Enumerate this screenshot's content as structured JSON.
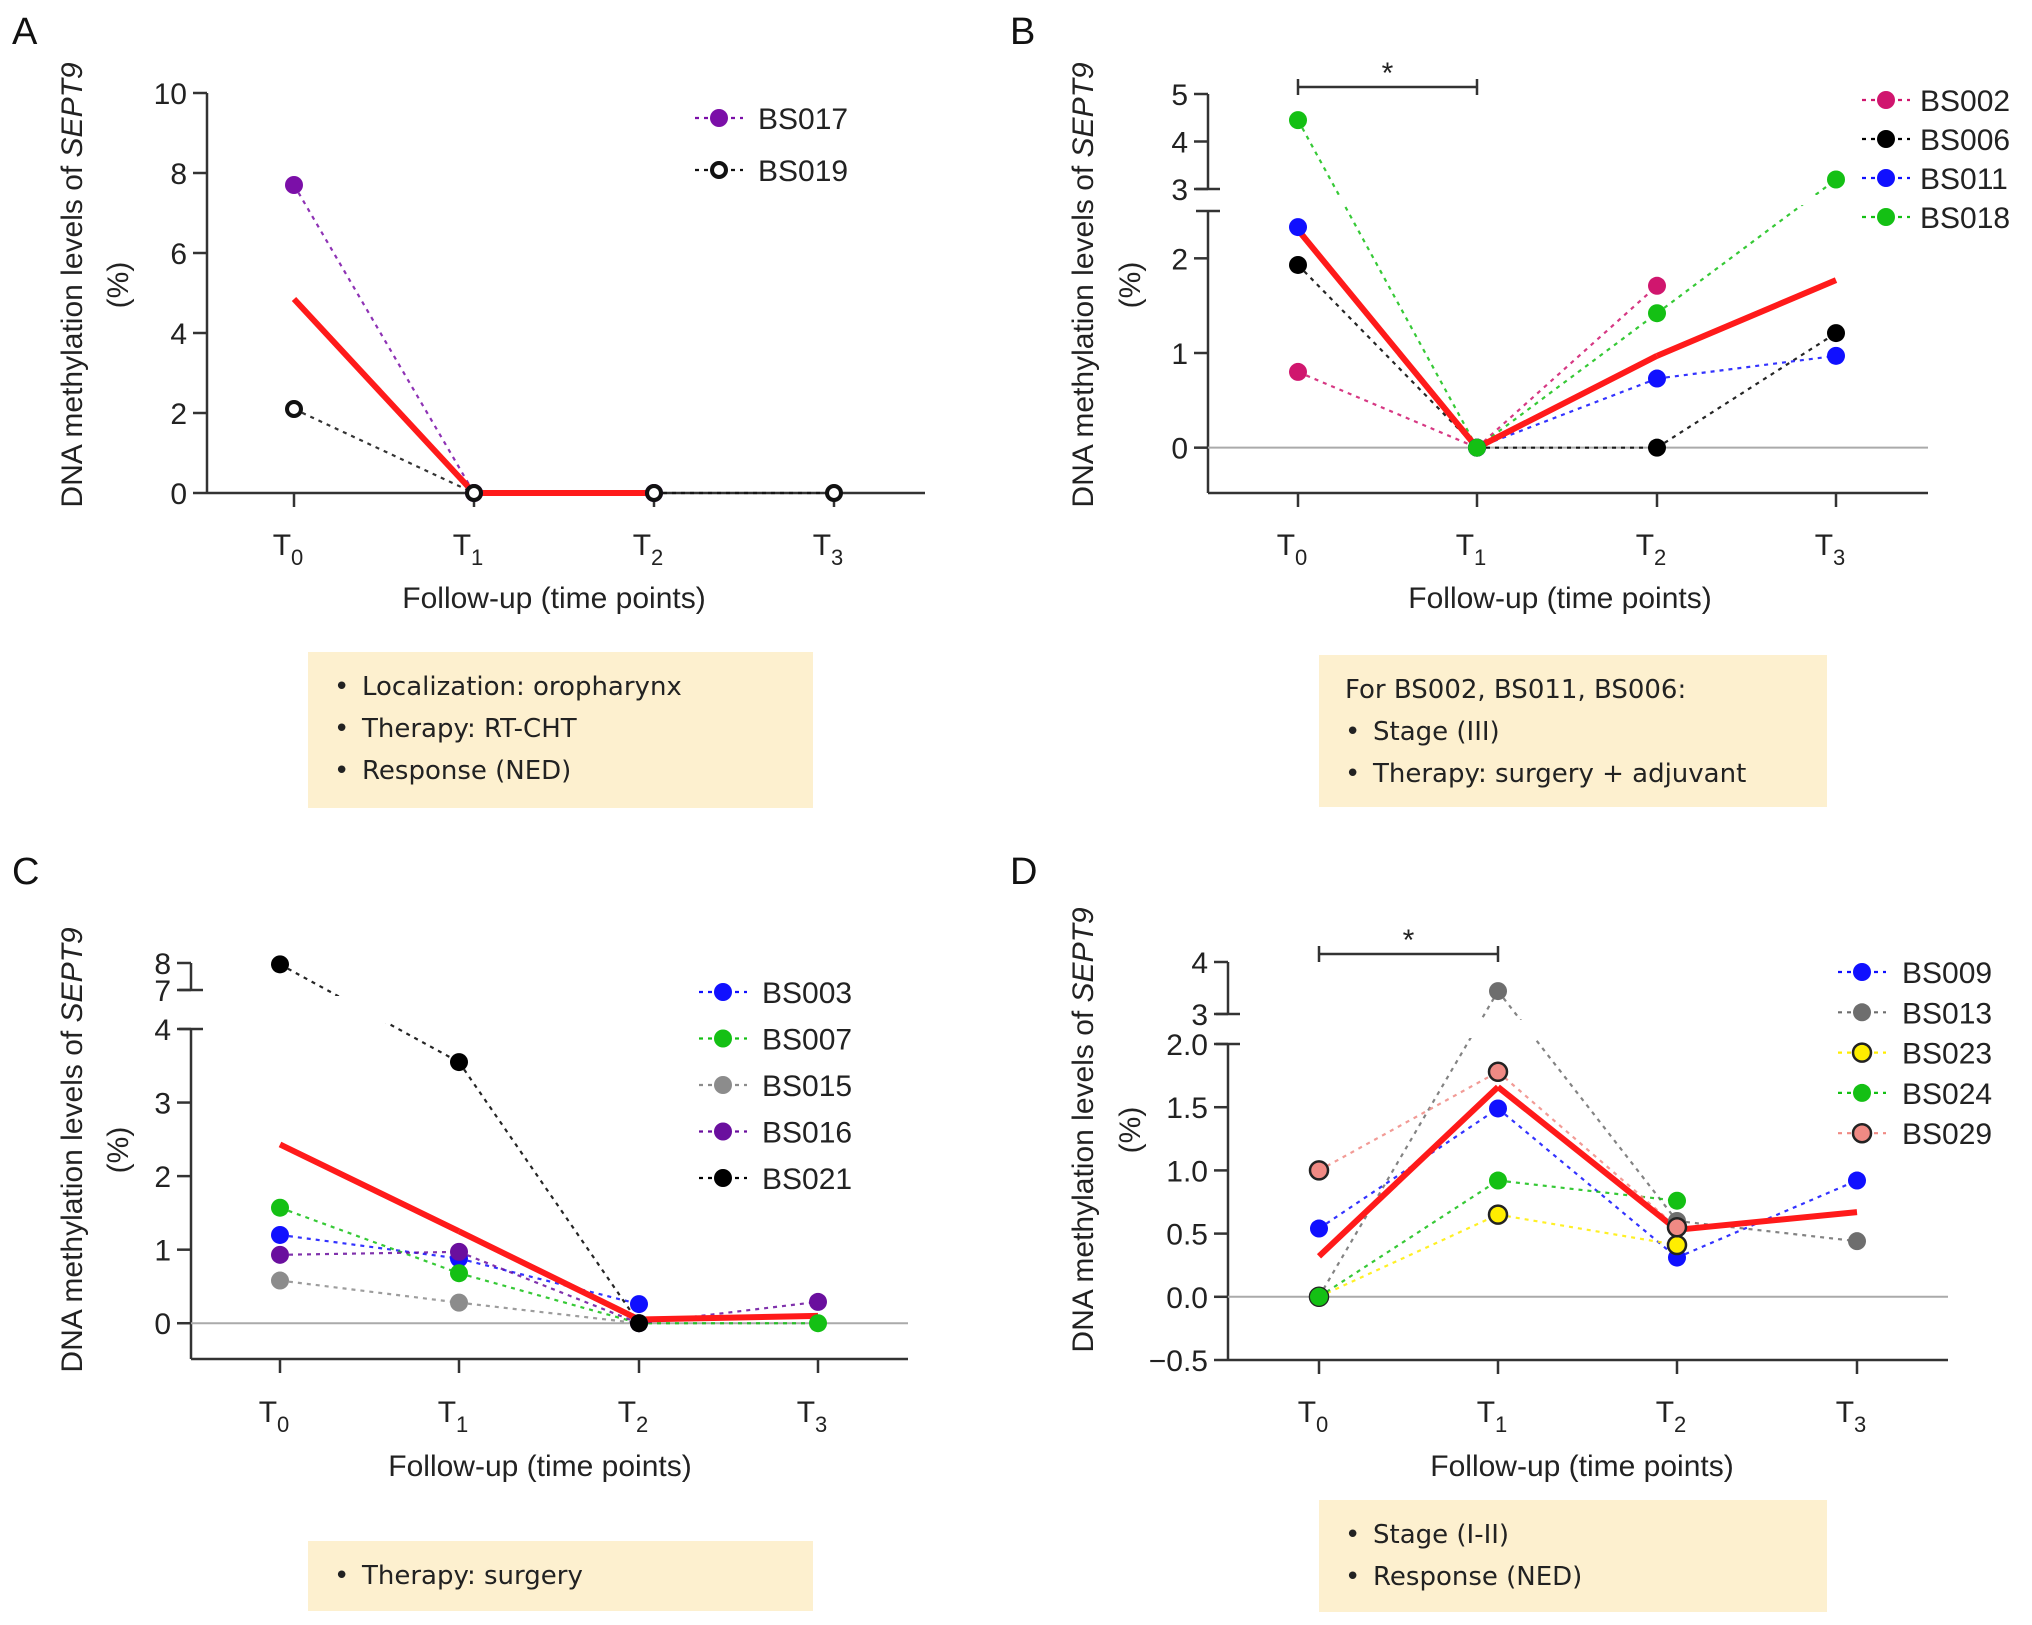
{
  "figure": {
    "panels": [
      "A",
      "B",
      "C",
      "D"
    ]
  },
  "annotations": {
    "A": {
      "heading": "",
      "items": [
        "Localization: oropharynx",
        "Therapy: RT-CHT",
        "Response (NED)"
      ]
    },
    "B": {
      "heading": "For BS002, BS011, BS006:",
      "items": [
        "Stage (III)",
        "Therapy: surgery + adjuvant"
      ]
    },
    "C": {
      "heading": "",
      "items": [
        "Therapy: surgery"
      ]
    },
    "D": {
      "heading": "",
      "items": [
        "Stage (I-II)",
        "Response (NED)"
      ]
    }
  },
  "colors": {
    "mean_line": "#ff1a1a",
    "box_fill": "#fdf0cf",
    "axis": "#333333",
    "zero_line": "#aaaaaa"
  },
  "chart_data": [
    {
      "panel": "A",
      "type": "line",
      "title": "",
      "xlabel": "Follow-up (time points)",
      "ylabel_main": "DNA methylation levels of ",
      "ylabel_gene": "SEPT9",
      "ylabel_unit": "(%)",
      "categories": [
        "T0",
        "T1",
        "T2",
        "T3"
      ],
      "category_base": "T",
      "category_subscripts": [
        "0",
        "1",
        "2",
        "3"
      ],
      "ylim": [
        0,
        10
      ],
      "yticks": [
        0,
        2,
        4,
        6,
        8,
        10
      ],
      "ytick_labels": [
        "0",
        "2",
        "4",
        "6",
        "8",
        "10"
      ],
      "axis_break": null,
      "zero_line": false,
      "legend_position": "top-right",
      "significance": null,
      "series": [
        {
          "name": "BS017",
          "color": "#7b0fa8",
          "marker": "filled",
          "values": [
            7.7,
            0,
            0,
            null
          ]
        },
        {
          "name": "BS019",
          "color": "#111111",
          "marker": "open",
          "values": [
            2.1,
            0,
            0,
            0
          ]
        }
      ],
      "mean": {
        "name": "mean",
        "color": "#ff1a1a",
        "values": [
          4.85,
          0,
          0,
          null
        ]
      }
    },
    {
      "panel": "B",
      "type": "line",
      "title": "",
      "xlabel": "Follow-up (time points)",
      "ylabel_main": "DNA methylation levels of ",
      "ylabel_gene": "SEPT9",
      "ylabel_unit": "(%)",
      "categories": [
        "T0",
        "T1",
        "T2",
        "T3"
      ],
      "category_base": "T",
      "category_subscripts": [
        "0",
        "1",
        "2",
        "3"
      ],
      "ylim": [
        -0.5,
        5
      ],
      "yticks": [
        0,
        1,
        2,
        3,
        4,
        5
      ],
      "ytick_labels": [
        "0",
        "1",
        "2",
        "3",
        "4",
        "5"
      ],
      "axis_break": {
        "lower_max": 2.5,
        "upper_min": 3,
        "upper_max": 5
      },
      "zero_line": true,
      "legend_position": "top-right",
      "significance": {
        "from": "T0",
        "to": "T1",
        "label": "*"
      },
      "series": [
        {
          "name": "BS002",
          "color": "#d0166e",
          "marker": "filled",
          "values": [
            0.8,
            0,
            1.71,
            null
          ]
        },
        {
          "name": "BS006",
          "color": "#000000",
          "marker": "filled",
          "values": [
            1.93,
            0,
            0,
            1.21
          ]
        },
        {
          "name": "BS011",
          "color": "#1010ff",
          "marker": "filled",
          "values": [
            2.33,
            0,
            0.73,
            0.97
          ]
        },
        {
          "name": "BS018",
          "color": "#14c014",
          "marker": "filled",
          "values": [
            4.45,
            0,
            1.42,
            3.2
          ]
        }
      ],
      "mean": {
        "name": "mean",
        "color": "#ff1a1a",
        "values": [
          2.3,
          0,
          0.97,
          1.77
        ]
      }
    },
    {
      "panel": "C",
      "type": "line",
      "title": "",
      "xlabel": "Follow-up (time points)",
      "ylabel_main": "DNA methylation levels of ",
      "ylabel_gene": "SEPT9",
      "ylabel_unit": "(%)",
      "categories": [
        "T0",
        "T1",
        "T2",
        "T3"
      ],
      "category_base": "T",
      "category_subscripts": [
        "0",
        "1",
        "2",
        "3"
      ],
      "ylim": [
        -0.5,
        8
      ],
      "yticks": [
        0,
        1,
        2,
        3,
        4,
        7,
        8
      ],
      "ytick_labels": [
        "0",
        "1",
        "2",
        "3",
        "4",
        "7",
        "8"
      ],
      "axis_break": {
        "lower_max": 4,
        "upper_min": 7,
        "upper_max": 8
      },
      "zero_line": true,
      "legend_position": "top-right",
      "significance": null,
      "series": [
        {
          "name": "BS003",
          "color": "#1010ff",
          "marker": "filled",
          "values": [
            1.2,
            0.88,
            0.26,
            null
          ]
        },
        {
          "name": "BS007",
          "color": "#14c014",
          "marker": "filled",
          "values": [
            1.57,
            0.68,
            0,
            0
          ]
        },
        {
          "name": "BS015",
          "color": "#8c8c8c",
          "marker": "filled",
          "values": [
            0.58,
            0.28,
            0,
            null
          ]
        },
        {
          "name": "BS016",
          "color": "#6a0f9e",
          "marker": "filled",
          "values": [
            0.93,
            0.97,
            0,
            0.29
          ]
        },
        {
          "name": "BS021",
          "color": "#000000",
          "marker": "filled",
          "values": [
            7.95,
            3.55,
            0,
            null
          ]
        }
      ],
      "mean": {
        "name": "mean",
        "color": "#ff1a1a",
        "values": [
          2.43,
          1.25,
          0.05,
          0.1
        ]
      }
    },
    {
      "panel": "D",
      "type": "line",
      "title": "",
      "xlabel": "Follow-up (time points)",
      "ylabel_main": "DNA methylation levels of ",
      "ylabel_gene": "SEPT9",
      "ylabel_unit": "(%)",
      "categories": [
        "T0",
        "T1",
        "T2",
        "T3"
      ],
      "category_base": "T",
      "category_subscripts": [
        "0",
        "1",
        "2",
        "3"
      ],
      "ylim": [
        -0.5,
        4
      ],
      "yticks": [
        -0.5,
        0.0,
        0.5,
        1.0,
        1.5,
        2.0,
        3,
        4
      ],
      "ytick_labels": [
        "−0.5",
        "0.0",
        "0.5",
        "1.0",
        "1.5",
        "2.0",
        "3",
        "4"
      ],
      "axis_break": {
        "lower_max": 2.0,
        "upper_min": 3,
        "upper_max": 4
      },
      "zero_line": true,
      "legend_position": "top-right",
      "significance": {
        "from": "T0",
        "to": "T1",
        "label": "*"
      },
      "series": [
        {
          "name": "BS009",
          "color": "#1010ff",
          "marker": "filled",
          "values": [
            0.54,
            1.49,
            0.31,
            0.92
          ]
        },
        {
          "name": "BS013",
          "color": "#6e6e6e",
          "marker": "filled",
          "values": [
            0,
            3.44,
            0.6,
            0.44
          ]
        },
        {
          "name": "BS023",
          "color": "#ffee00",
          "marker": "outlined",
          "values": [
            0,
            0.65,
            0.41,
            null
          ]
        },
        {
          "name": "BS024",
          "color": "#14c014",
          "marker": "filled",
          "values": [
            0,
            0.92,
            0.76,
            null
          ]
        },
        {
          "name": "BS029",
          "color": "#f08a84",
          "marker": "outlined",
          "values": [
            1.0,
            1.78,
            0.55,
            null
          ]
        }
      ],
      "mean": {
        "name": "mean",
        "color": "#ff1a1a",
        "values": [
          0.32,
          1.66,
          0.53,
          0.67
        ]
      }
    }
  ]
}
